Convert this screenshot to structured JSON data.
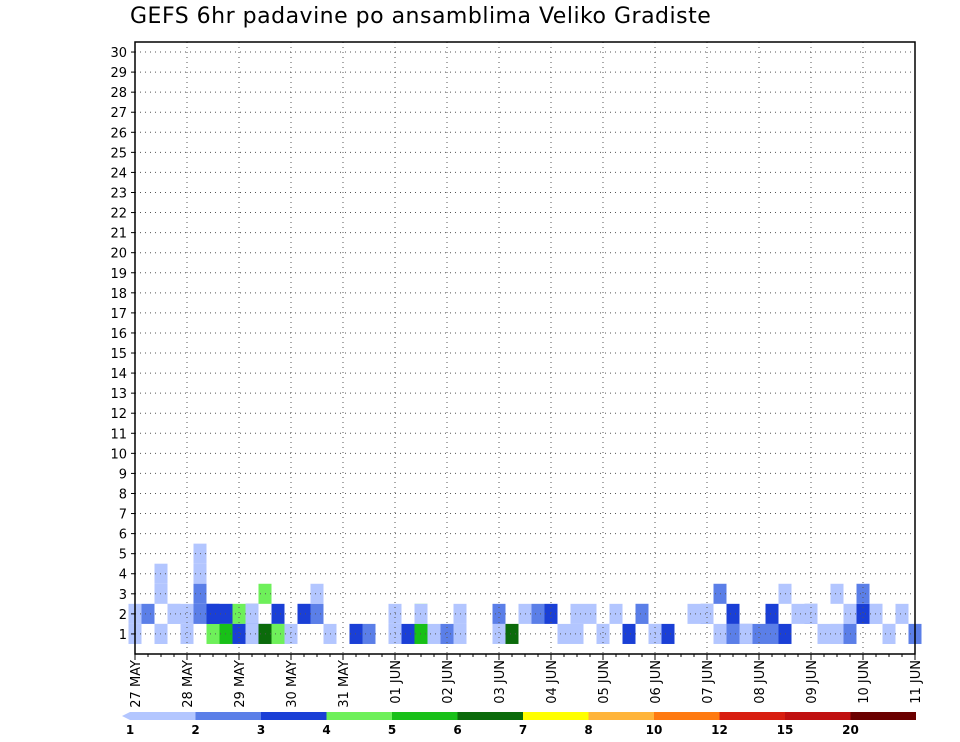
{
  "chart_data": {
    "type": "heatmap",
    "title": "GEFS 6hr padavine po ansamblima Veliko Gradiste",
    "y_categories": [
      "1",
      "2",
      "3",
      "4",
      "5",
      "6",
      "7",
      "8",
      "9",
      "10",
      "11",
      "12",
      "13",
      "14",
      "15",
      "16",
      "17",
      "18",
      "19",
      "20",
      "21",
      "22",
      "23",
      "24",
      "25",
      "26",
      "27",
      "28",
      "29",
      "30"
    ],
    "x_labels": [
      "27 MAY",
      "28 MAY",
      "29 MAY",
      "30 MAY",
      "31 MAY",
      "01 JUN",
      "02 JUN",
      "03 JUN",
      "04 JUN",
      "05 JUN",
      "06 JUN",
      "07 JUN",
      "08 JUN",
      "09 JUN",
      "10 JUN",
      "11 JUN"
    ],
    "x_steps_per_label": 4,
    "n_steps": 61,
    "grid": true,
    "colorbar": {
      "ticks": [
        "1",
        "2",
        "3",
        "4",
        "5",
        "6",
        "7",
        "8",
        "10",
        "12",
        "15",
        "20"
      ],
      "colors": [
        "#b3c6ff",
        "#5b7fe8",
        "#1a3fd6",
        "#6ef05a",
        "#18c018",
        "#0b6b0b",
        "#ffff00",
        "#ffb43a",
        "#ff7a10",
        "#d81e10",
        "#c01010",
        "#6b0000"
      ]
    },
    "cells": [
      [
        0,
        1,
        1
      ],
      [
        0,
        2,
        1
      ],
      [
        1,
        2,
        2
      ],
      [
        3,
        2,
        1
      ],
      [
        5,
        4,
        1
      ],
      [
        5,
        2,
        2
      ],
      [
        6,
        1,
        4
      ],
      [
        6,
        2,
        3
      ],
      [
        7,
        2,
        3
      ],
      [
        9,
        2,
        3
      ],
      [
        10,
        1,
        2
      ],
      [
        13,
        2,
        1
      ],
      [
        14,
        2,
        2
      ],
      [
        20,
        1,
        1
      ],
      [
        20,
        2,
        1
      ],
      [
        22,
        1,
        5
      ],
      [
        22,
        2,
        4
      ],
      [
        24,
        1,
        2
      ],
      [
        28,
        1,
        1
      ],
      [
        30,
        2,
        1
      ],
      [
        31,
        2,
        2
      ],
      [
        34,
        1,
        1
      ],
      [
        36,
        1,
        1
      ],
      [
        37,
        2,
        1
      ],
      [
        39,
        2,
        1
      ],
      [
        40,
        1,
        1
      ],
      [
        43,
        2,
        1
      ],
      [
        44,
        2,
        2
      ],
      [
        48,
        1,
        2
      ],
      [
        49,
        1,
        2
      ],
      [
        51,
        2,
        1
      ],
      [
        53,
        1,
        1
      ],
      [
        55,
        2,
        1
      ],
      [
        57,
        2,
        1
      ],
      [
        58,
        1,
        1
      ],
      [
        59,
        2,
        1
      ],
      [
        60,
        1,
        2
      ],
      [
        2,
        3,
        1
      ],
      [
        2,
        4,
        1
      ],
      [
        3,
        2,
        1
      ],
      [
        5,
        5,
        1
      ],
      [
        6,
        2,
        3
      ],
      [
        7,
        1,
        5
      ],
      [
        8,
        2,
        4
      ],
      [
        9,
        1,
        2
      ],
      [
        10,
        1,
        2
      ],
      [
        11,
        2,
        3
      ],
      [
        13,
        2,
        3
      ],
      [
        14,
        2,
        2
      ],
      [
        17,
        1,
        1
      ],
      [
        18,
        1,
        2
      ],
      [
        21,
        1,
        3
      ],
      [
        22,
        2,
        1
      ],
      [
        23,
        1,
        1
      ],
      [
        28,
        2,
        2
      ],
      [
        29,
        1,
        6
      ],
      [
        32,
        2,
        3
      ],
      [
        38,
        1,
        3
      ],
      [
        39,
        2,
        2
      ],
      [
        40,
        1,
        1
      ],
      [
        44,
        2,
        1
      ],
      [
        46,
        1,
        1
      ],
      [
        47,
        1,
        3
      ],
      [
        50,
        1,
        3
      ],
      [
        52,
        2,
        2
      ],
      [
        54,
        1,
        1
      ],
      [
        55,
        1,
        2
      ],
      [
        56,
        2,
        3
      ],
      [
        58,
        1,
        1
      ],
      [
        4,
        1,
        1
      ],
      [
        4,
        2,
        1
      ],
      [
        5,
        3,
        2
      ],
      [
        8,
        1,
        3
      ],
      [
        9,
        2,
        1
      ],
      [
        9,
        1,
        1
      ],
      [
        10,
        1,
        6
      ],
      [
        10,
        3,
        4
      ],
      [
        11,
        1,
        4
      ],
      [
        12,
        1,
        1
      ],
      [
        14,
        3,
        1
      ],
      [
        15,
        1,
        1
      ],
      [
        17,
        1,
        3
      ],
      [
        25,
        1,
        1
      ],
      [
        25,
        2,
        1
      ],
      [
        33,
        1,
        1
      ],
      [
        34,
        2,
        1
      ],
      [
        35,
        2,
        1
      ],
      [
        36,
        1,
        1
      ],
      [
        41,
        1,
        3
      ],
      [
        45,
        1,
        1
      ],
      [
        45,
        3,
        2
      ],
      [
        46,
        1,
        2
      ],
      [
        46,
        2,
        3
      ],
      [
        47,
        1,
        1
      ],
      [
        49,
        2,
        3
      ],
      [
        50,
        3,
        1
      ],
      [
        52,
        2,
        1
      ],
      [
        54,
        3,
        1
      ],
      [
        54,
        1,
        1
      ],
      [
        56,
        3,
        2
      ],
      [
        57,
        2,
        1
      ],
      [
        2,
        1,
        1
      ],
      [
        2,
        1,
        1
      ]
    ]
  }
}
